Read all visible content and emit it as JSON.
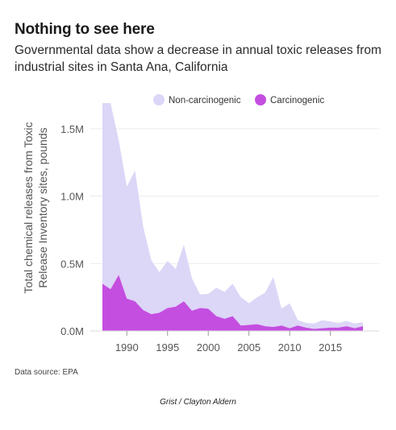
{
  "header": {
    "title": "Nothing to see here",
    "subtitle": "Governmental data show a decrease in annual toxic releases from industrial sites in Santa Ana, California"
  },
  "footer": {
    "source": "Data source: EPA",
    "credit": "Grist / Clayton Aldern"
  },
  "chart_data": {
    "type": "area",
    "stacked": true,
    "title": "Nothing to see here",
    "subtitle": "Governmental data show a decrease in annual toxic releases from industrial sites in Santa Ana, California",
    "xlabel": "",
    "ylabel": "Total chemical releases from Toxic Release Inventory sites, pounds",
    "x": [
      1987,
      1988,
      1989,
      1990,
      1991,
      1992,
      1993,
      1994,
      1995,
      1996,
      1997,
      1998,
      1999,
      2000,
      2001,
      2002,
      2003,
      2004,
      2005,
      2006,
      2007,
      2008,
      2009,
      2010,
      2011,
      2012,
      2013,
      2014,
      2015,
      2016,
      2017,
      2018,
      2019
    ],
    "xticks": [
      1990,
      1995,
      2000,
      2005,
      2010,
      2015
    ],
    "xlim": [
      1987,
      2019
    ],
    "ylim": [
      0,
      1750000
    ],
    "yticks": [
      0,
      500000,
      1000000,
      1500000
    ],
    "ytick_labels": [
      "0.0M",
      "0.5M",
      "1.0M",
      "1.5M"
    ],
    "grid": true,
    "legend_position": "top",
    "series": [
      {
        "name": "Carcinogenic",
        "color": "#c44ee0",
        "values": [
          350000,
          310000,
          415000,
          240000,
          220000,
          155000,
          125000,
          135000,
          170000,
          180000,
          220000,
          150000,
          170000,
          165000,
          110000,
          90000,
          110000,
          40000,
          45000,
          50000,
          35000,
          30000,
          40000,
          20000,
          40000,
          25000,
          15000,
          20000,
          25000,
          25000,
          35000,
          20000,
          35000
        ]
      },
      {
        "name": "Non-carcinogenic",
        "color": "#dcd6f7",
        "values": [
          1340000,
          1380000,
          1000000,
          830000,
          970000,
          620000,
          400000,
          300000,
          350000,
          280000,
          420000,
          240000,
          100000,
          110000,
          210000,
          200000,
          240000,
          210000,
          160000,
          200000,
          250000,
          370000,
          125000,
          185000,
          40000,
          35000,
          40000,
          60000,
          45000,
          35000,
          40000,
          35000,
          30000
        ]
      }
    ]
  }
}
